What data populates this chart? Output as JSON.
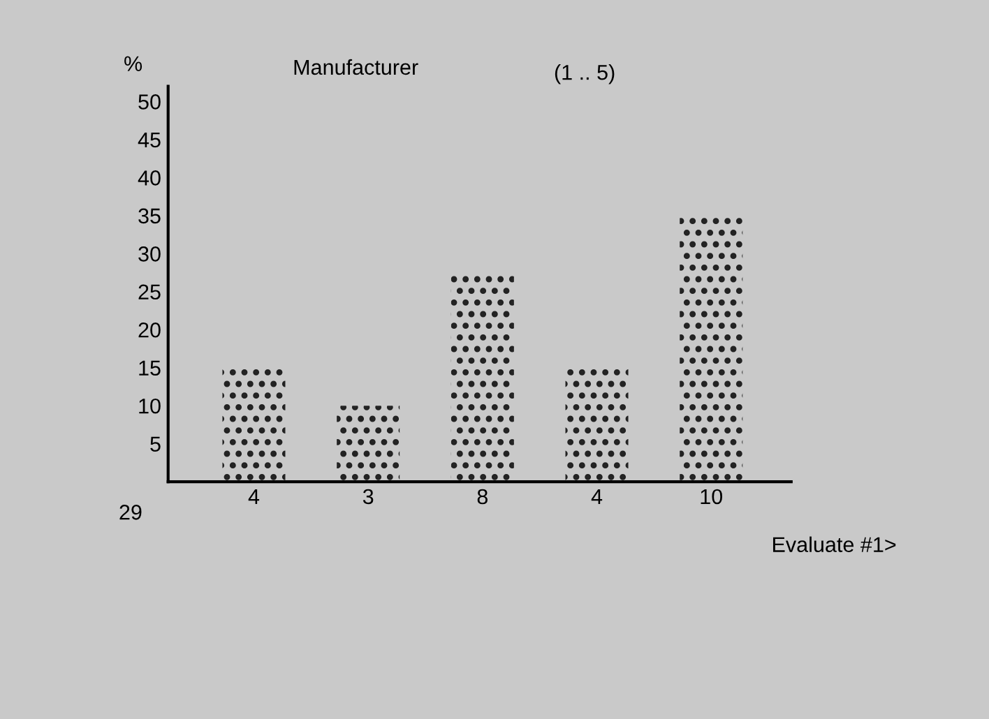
{
  "chart_data": {
    "type": "bar",
    "title": "Manufacturer",
    "subtitle": "(1 .. 5)",
    "ylabel": "%",
    "categories": [
      "4",
      "3",
      "8",
      "4",
      "10"
    ],
    "values": [
      15,
      10,
      27.5,
      15,
      35
    ],
    "color": "#222222",
    "ylim": [
      0,
      52
    ],
    "yticks": [
      5,
      10,
      15,
      20,
      25,
      30,
      35,
      40,
      45,
      50
    ],
    "grid": false,
    "annotations": [
      "29",
      "Evaluate #1>"
    ]
  }
}
